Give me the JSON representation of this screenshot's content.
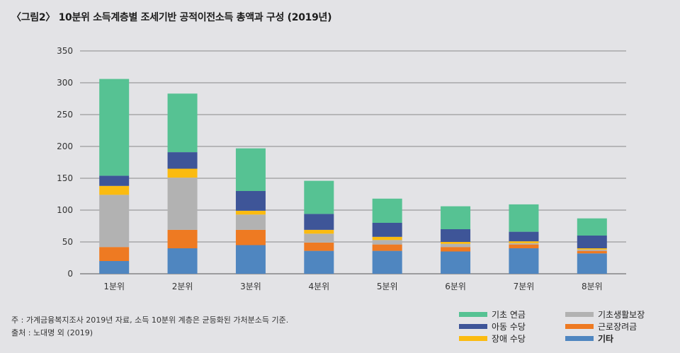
{
  "chart_data": {
    "type": "bar",
    "stacked": true,
    "title": "〈그림2〉 10분위 소득계층별 조세기반 공적이전소득 총액과 구성 (2019년)",
    "xlabel": "",
    "ylabel": "",
    "ylim": [
      0,
      350
    ],
    "yticks": [
      0,
      50,
      100,
      150,
      200,
      250,
      300,
      350
    ],
    "grid": true,
    "categories": [
      "1분위",
      "2분위",
      "3분위",
      "4분위",
      "5분위",
      "6분위",
      "7분위",
      "8분위"
    ],
    "series": [
      {
        "name": "기타",
        "color": "#4f86c0",
        "values": [
          20,
          40,
          45,
          36,
          36,
          35,
          40,
          32
        ]
      },
      {
        "name": "근로장려금",
        "color": "#ee7a22",
        "values": [
          22,
          29,
          24,
          13,
          10,
          7,
          6,
          4
        ]
      },
      {
        "name": "기초생활보장",
        "color": "#b2b2b2",
        "values": [
          82,
          82,
          24,
          14,
          7,
          5,
          2,
          2
        ]
      },
      {
        "name": "장애 수당",
        "color": "#fbbb10",
        "values": [
          14,
          14,
          6,
          6,
          5,
          3,
          3,
          2
        ]
      },
      {
        "name": "아동 수당",
        "color": "#3e5598",
        "values": [
          16,
          26,
          31,
          25,
          22,
          20,
          15,
          20
        ]
      },
      {
        "name": "기초 연금",
        "color": "#56c293",
        "values": [
          152,
          92,
          67,
          52,
          38,
          36,
          43,
          27
        ]
      }
    ],
    "legend": [
      {
        "name": "기초 연금",
        "color": "#56c293",
        "bold": false
      },
      {
        "name": "기초생활보장",
        "color": "#b2b2b2",
        "bold": false
      },
      {
        "name": "아동 수당",
        "color": "#3e5598",
        "bold": false
      },
      {
        "name": "근로장려금",
        "color": "#ee7a22",
        "bold": false
      },
      {
        "name": "장애 수당",
        "color": "#fbbb10",
        "bold": false
      },
      {
        "name": "기타",
        "color": "#4f86c0",
        "bold": true
      }
    ],
    "legend_position": "bottom-right"
  },
  "notes": {
    "note": "주 : 가계금융복지조사 2019년 자료, 소득 10분위 계층은 균등화된 가처분소득 기준.",
    "source": "출처 : 노대명 외 (2019)"
  }
}
